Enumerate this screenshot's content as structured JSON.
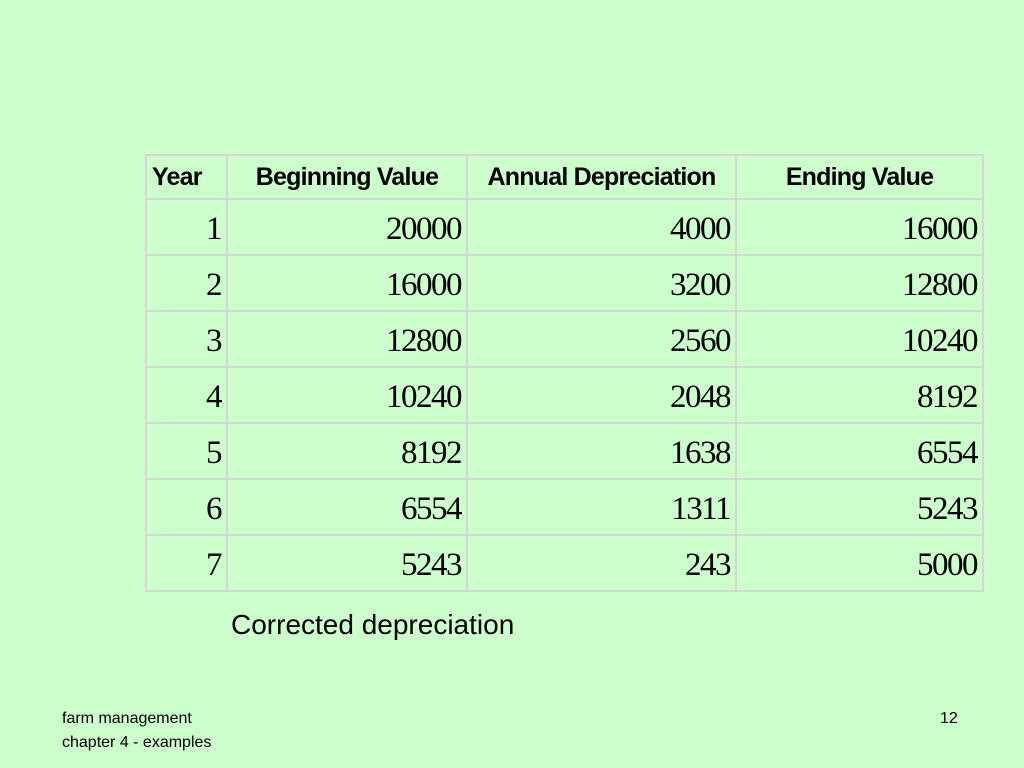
{
  "table": {
    "headers": [
      "Year",
      "Beginning Value",
      "Annual Depreciation",
      "Ending Value"
    ],
    "rows": [
      [
        "1",
        "20000",
        "4000",
        "16000"
      ],
      [
        "2",
        "16000",
        "3200",
        "12800"
      ],
      [
        "3",
        "12800",
        "2560",
        "10240"
      ],
      [
        "4",
        "10240",
        "2048",
        "8192"
      ],
      [
        "5",
        "8192",
        "1638",
        "6554"
      ],
      [
        "6",
        "6554",
        "1311",
        "5243"
      ],
      [
        "7",
        "5243",
        "243",
        "5000"
      ]
    ]
  },
  "caption": "Corrected depreciation",
  "footer": {
    "line1": "farm management",
    "line2": "chapter 4 - examples",
    "page_number": "12"
  },
  "colors": {
    "background": "#ccffcc",
    "grid": "#d6d6d6",
    "text": "#000000"
  }
}
